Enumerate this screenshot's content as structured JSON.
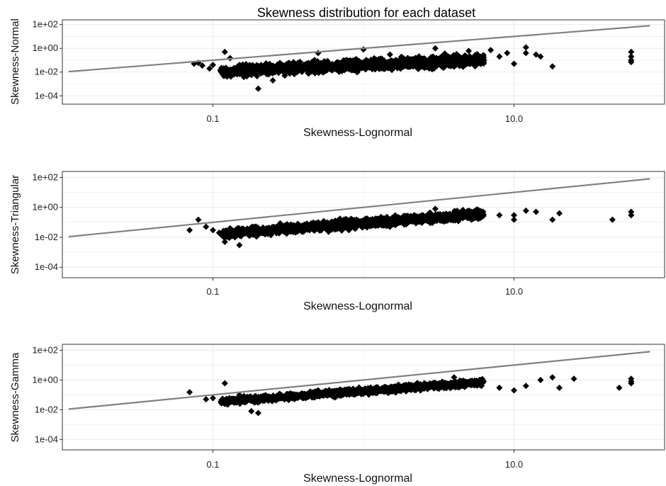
{
  "title": "Skewness distribution for each dataset",
  "colors": {
    "points": "#000000",
    "reference_line": "#808080",
    "grid": "#ebebeb",
    "border": "#333333"
  },
  "chart_data": [
    {
      "type": "scatter",
      "title": "Skewness distribution for each dataset",
      "xlabel": "Skewness-Lognormal",
      "ylabel": "Skewness-Normal",
      "x_scale": "log10",
      "y_scale": "log10",
      "xlim": [
        0.01,
        100
      ],
      "ylim": [
        2e-05,
        250
      ],
      "x_ticks": [
        {
          "value": 0.1,
          "label": "0.1"
        },
        {
          "value": 10,
          "label": "10.0"
        }
      ],
      "y_ticks": [
        {
          "value": 100,
          "label": "1e+02"
        },
        {
          "value": 1,
          "label": "1e+00"
        },
        {
          "value": 0.01,
          "label": "1e-02"
        },
        {
          "value": 0.0001,
          "label": "1e-04"
        }
      ],
      "grid": true,
      "reference_line": {
        "x": [
          0.011,
          80
        ],
        "y": [
          0.011,
          80
        ]
      },
      "points": [
        [
          0.075,
          0.05
        ],
        [
          0.08,
          0.06
        ],
        [
          0.085,
          0.035
        ],
        [
          0.095,
          0.02
        ],
        [
          0.1,
          0.04
        ],
        [
          0.12,
          0.5
        ],
        [
          0.13,
          0.15
        ],
        [
          0.15,
          0.02
        ],
        [
          0.2,
          0.0004
        ],
        [
          0.25,
          0.002
        ],
        [
          0.3,
          0.005
        ],
        [
          0.5,
          0.4
        ],
        [
          1,
          0.8
        ],
        [
          1.5,
          0.3
        ],
        [
          2,
          0.1
        ],
        [
          3,
          1.0
        ],
        [
          5,
          0.6
        ],
        [
          7,
          0.7
        ],
        [
          8,
          0.2
        ],
        [
          10,
          0.05
        ],
        [
          12,
          0.4
        ],
        [
          15,
          0.2
        ],
        [
          18,
          0.03
        ],
        [
          60,
          0.5
        ],
        [
          60,
          0.2
        ],
        [
          60,
          0.1
        ],
        [
          60,
          0.07
        ],
        [
          12,
          1.2
        ],
        [
          14,
          0.3
        ],
        [
          9,
          0.4
        ]
      ]
    },
    {
      "type": "scatter",
      "xlabel": "Skewness-Lognormal",
      "ylabel": "Skewness-Triangular",
      "x_scale": "log10",
      "y_scale": "log10",
      "xlim": [
        0.01,
        100
      ],
      "ylim": [
        2e-05,
        250
      ],
      "x_ticks": [
        {
          "value": 0.1,
          "label": "0.1"
        },
        {
          "value": 10,
          "label": "10.0"
        }
      ],
      "y_ticks": [
        {
          "value": 100,
          "label": "1e+02"
        },
        {
          "value": 1,
          "label": "1e+00"
        },
        {
          "value": 0.01,
          "label": "1e-02"
        },
        {
          "value": 0.0001,
          "label": "1e-04"
        }
      ],
      "grid": true,
      "reference_line": {
        "x": [
          0.011,
          80
        ],
        "y": [
          0.011,
          80
        ]
      },
      "points": [
        [
          0.07,
          0.03
        ],
        [
          0.08,
          0.15
        ],
        [
          0.09,
          0.05
        ],
        [
          0.1,
          0.03
        ],
        [
          0.11,
          0.02
        ],
        [
          0.12,
          0.005
        ],
        [
          0.14,
          0.01
        ],
        [
          0.15,
          0.003
        ],
        [
          0.13,
          0.04
        ],
        [
          0.3,
          0.04
        ],
        [
          0.5,
          0.1
        ],
        [
          0.8,
          0.03
        ],
        [
          1.5,
          0.05
        ],
        [
          3,
          0.8
        ],
        [
          6,
          0.2
        ],
        [
          8,
          0.3
        ],
        [
          10,
          0.3
        ],
        [
          12,
          0.6
        ],
        [
          14,
          0.5
        ],
        [
          18,
          0.15
        ],
        [
          20,
          0.4
        ],
        [
          45,
          0.15
        ],
        [
          60,
          0.5
        ],
        [
          60,
          0.3
        ],
        [
          10,
          0.15
        ]
      ]
    },
    {
      "type": "scatter",
      "xlabel": "Skewness-Lognormal",
      "ylabel": "Skewness-Gamma",
      "x_scale": "log10",
      "y_scale": "log10",
      "xlim": [
        0.01,
        100
      ],
      "ylim": [
        2e-05,
        250
      ],
      "x_ticks": [
        {
          "value": 0.1,
          "label": "0.1"
        },
        {
          "value": 10,
          "label": "10.0"
        }
      ],
      "y_ticks": [
        {
          "value": 100,
          "label": "1e+02"
        },
        {
          "value": 1,
          "label": "1e+00"
        },
        {
          "value": 0.01,
          "label": "1e-02"
        },
        {
          "value": 0.0001,
          "label": "1e-04"
        }
      ],
      "grid": true,
      "reference_line": {
        "x": [
          0.011,
          80
        ],
        "y": [
          0.011,
          80
        ]
      },
      "points": [
        [
          0.07,
          0.15
        ],
        [
          0.09,
          0.05
        ],
        [
          0.1,
          0.06
        ],
        [
          0.12,
          0.6
        ],
        [
          0.15,
          0.1
        ],
        [
          0.18,
          0.008
        ],
        [
          0.2,
          0.006
        ],
        [
          0.5,
          0.2
        ],
        [
          1,
          0.2
        ],
        [
          2,
          0.5
        ],
        [
          4,
          1.5
        ],
        [
          6,
          0.8
        ],
        [
          8,
          0.3
        ],
        [
          10,
          0.2
        ],
        [
          12,
          0.4
        ],
        [
          15,
          1.0
        ],
        [
          18,
          1.5
        ],
        [
          20,
          0.3
        ],
        [
          25,
          1.2
        ],
        [
          50,
          0.3
        ],
        [
          60,
          0.8
        ],
        [
          60,
          1.2
        ],
        [
          60,
          0.6
        ]
      ]
    }
  ]
}
